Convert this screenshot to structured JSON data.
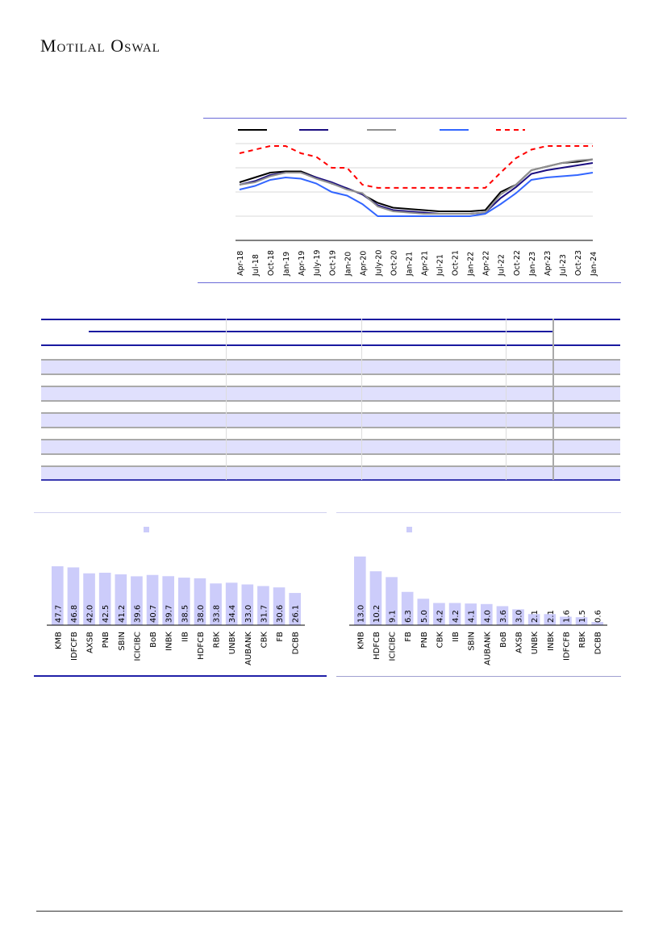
{
  "header": {
    "logo_text": "Motilal Oswal"
  },
  "colors": {
    "accent": "#2b2bc0",
    "bar": "#ccccfa",
    "black": "#000000",
    "navy": "#1a0d80",
    "gray": "#909090",
    "blue": "#3366ff",
    "red": "#ff0000"
  },
  "chart_data": [
    {
      "type": "line",
      "title": "",
      "x": [
        "Apr-18",
        "Jul-18",
        "Oct-18",
        "Jan-19",
        "Apr-19",
        "July-19",
        "Oct-19",
        "Jan-20",
        "Apr-20",
        "July-20",
        "Oct-20",
        "Jan-21",
        "Apr-21",
        "Jul-21",
        "Oct-21",
        "Jan-22",
        "Apr-22",
        "Jul-22",
        "Oct-22",
        "Jan-23",
        "Apr-23",
        "Jul-23",
        "Oct-23",
        "Jan-24"
      ],
      "ylim": [
        0,
        4.5
      ],
      "grid": true,
      "legend": "top",
      "series": [
        {
          "name": "",
          "color": "#000000",
          "dash": false,
          "values": [
            2.4,
            2.6,
            2.8,
            2.85,
            2.85,
            2.6,
            2.35,
            2.15,
            1.9,
            1.55,
            1.35,
            1.3,
            1.25,
            1.2,
            1.2,
            1.2,
            1.25,
            2.0,
            2.3,
            2.9,
            3.05,
            3.2,
            3.25,
            3.35
          ]
        },
        {
          "name": "",
          "color": "#1a0d80",
          "dash": false,
          "values": [
            2.3,
            2.45,
            2.7,
            2.8,
            2.8,
            2.6,
            2.4,
            2.15,
            1.9,
            1.45,
            1.25,
            1.2,
            1.15,
            1.1,
            1.1,
            1.1,
            1.15,
            1.75,
            2.2,
            2.75,
            2.9,
            3.0,
            3.1,
            3.2
          ]
        },
        {
          "name": "",
          "color": "#909090",
          "dash": false,
          "values": [
            2.3,
            2.4,
            2.65,
            2.8,
            2.8,
            2.55,
            2.35,
            2.1,
            1.95,
            1.4,
            1.2,
            1.15,
            1.1,
            1.1,
            1.1,
            1.1,
            1.15,
            1.9,
            2.3,
            2.9,
            3.05,
            3.2,
            3.3,
            3.35
          ]
        },
        {
          "name": "",
          "color": "#3366ff",
          "dash": false,
          "values": [
            2.1,
            2.25,
            2.5,
            2.6,
            2.55,
            2.35,
            2.0,
            1.85,
            1.5,
            1.0,
            1.0,
            1.0,
            1.0,
            1.0,
            1.0,
            1.0,
            1.1,
            1.5,
            1.95,
            2.5,
            2.6,
            2.65,
            2.7,
            2.8
          ]
        },
        {
          "name": "",
          "color": "#ff0000",
          "dash": true,
          "values": [
            3.6,
            3.75,
            3.9,
            3.9,
            3.6,
            3.45,
            3.0,
            3.0,
            2.3,
            2.17,
            2.17,
            2.17,
            2.17,
            2.17,
            2.17,
            2.17,
            2.17,
            2.8,
            3.4,
            3.75,
            3.9,
            3.9,
            3.9,
            3.9
          ]
        }
      ]
    },
    {
      "type": "bar",
      "title": "",
      "categories": [
        "KMB",
        "IDFCFB",
        "AXSB",
        "PNB",
        "SBIN",
        "ICICIBC",
        "BoB",
        "INBK",
        "IIB",
        "HDFCB",
        "RBK",
        "UNBK",
        "AUBANK",
        "CBK",
        "FB",
        "DCBB"
      ],
      "values": [
        47.7,
        46.8,
        42.0,
        42.5,
        41.2,
        39.6,
        40.7,
        39.7,
        38.5,
        38.0,
        33.8,
        34.4,
        33.0,
        31.7,
        30.6,
        26.1
      ],
      "labels": [
        "47.7",
        "46.8",
        "42.0",
        "42.5",
        "41.2",
        "39.6",
        "40.7",
        "39.7",
        "38.5",
        "38.0",
        "33.8",
        "34.4",
        "33.0",
        "31.7",
        "30.6",
        "26.1"
      ],
      "ylim": [
        0,
        55
      ],
      "legend": "top"
    },
    {
      "type": "bar",
      "title": "",
      "categories": [
        "KMB",
        "HDFCB",
        "ICICIBC",
        "FB",
        "PNB",
        "CBK",
        "IIB",
        "SBIN",
        "AUBANK",
        "BoB",
        "AXSB",
        "UNBK",
        "INBK",
        "IDFCFB",
        "RBK",
        "DCBB"
      ],
      "values": [
        13.0,
        10.2,
        9.1,
        6.3,
        5.0,
        4.2,
        4.2,
        4.1,
        4.0,
        3.6,
        3.0,
        2.1,
        2.1,
        1.6,
        1.5,
        0.6
      ],
      "labels": [
        "13.0",
        "10.2",
        "9.1",
        "6.3",
        "5.0",
        "4.2",
        "4.2",
        "4.1",
        "4.0",
        "3.6",
        "3.0",
        "2.1",
        "2.1",
        "1.6",
        "1.5",
        "0.6"
      ],
      "ylim": [
        0,
        15
      ],
      "legend": "top"
    }
  ]
}
